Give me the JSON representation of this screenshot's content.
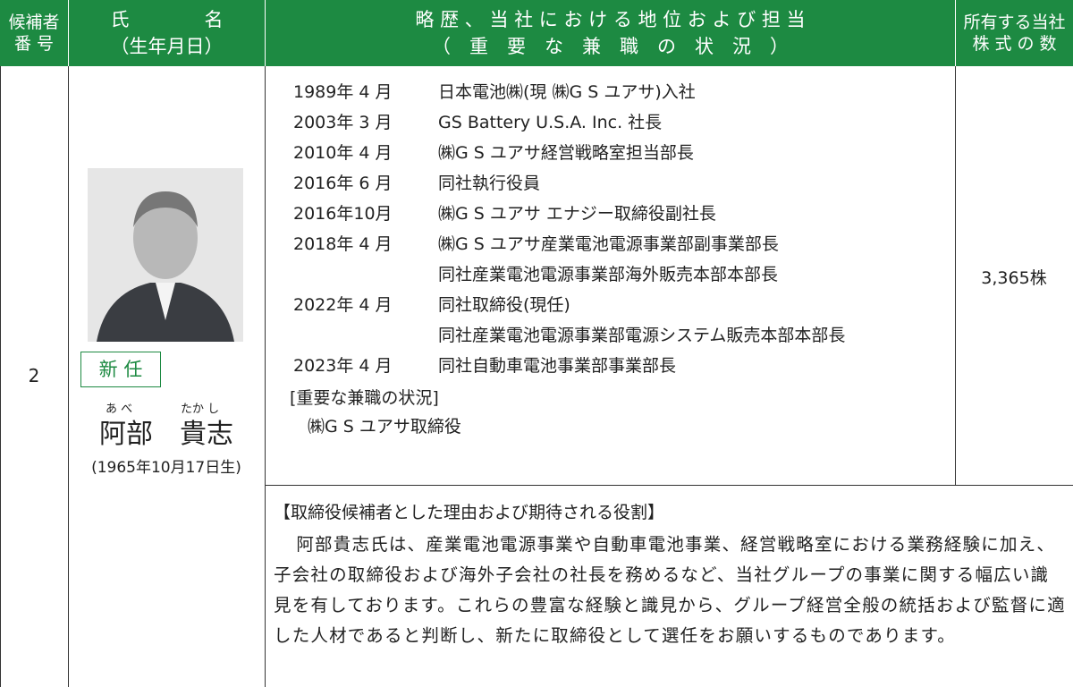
{
  "header": {
    "number": [
      "候補者",
      "番 号"
    ],
    "name": [
      "氏　　　　名",
      "（生年月日）"
    ],
    "career": [
      "略 歴 、 当 社 に お け る 地 位 お よ び 担 当",
      "（　重　要　な　兼　職　の　状　況　）"
    ],
    "shares": [
      "所有する当社",
      "株 式 の 数"
    ]
  },
  "candidate": {
    "number": "2",
    "badge": "新 任",
    "furigana": [
      "あ べ",
      "たか し"
    ],
    "name": "阿部　貴志",
    "birth": "(1965年10月17日生)",
    "shares": "3,365株",
    "career": [
      {
        "date": "1989年 4 月",
        "lines": [
          "日本電池㈱(現 ㈱G S ユアサ)入社"
        ]
      },
      {
        "date": "2003年 3 月",
        "lines": [
          "GS Battery U.S.A. Inc. 社長"
        ]
      },
      {
        "date": "2010年 4 月",
        "lines": [
          "㈱G S ユアサ経営戦略室担当部長"
        ]
      },
      {
        "date": "2016年 6 月",
        "lines": [
          "同社執行役員"
        ]
      },
      {
        "date": "2016年10月",
        "lines": [
          "㈱G S ユアサ エナジー取締役副社長"
        ]
      },
      {
        "date": "2018年 4 月",
        "lines": [
          "㈱G S ユアサ産業電池電源事業部副事業部長",
          "同社産業電池電源事業部海外販売本部本部長"
        ]
      },
      {
        "date": "2022年 4 月",
        "lines": [
          "同社取締役(現任)",
          "同社産業電池電源事業部電源システム販売本部本部長"
        ]
      },
      {
        "date": "2023年 4 月",
        "lines": [
          "同社自動車電池事業部事業部長"
        ]
      }
    ],
    "concurrent_title": "[重要な兼職の状況]",
    "concurrent": "㈱G S ユアサ取締役",
    "reason_title": "【取締役候補者とした理由および期待される役割】",
    "reason": "阿部貴志氏は、産業電池電源事業や自動車電池事業、経営戦略室における業務経験に加え、子会社の取締役および海外子会社の社長を務めるなど、当社グループの事業に関する幅広い識見を有しております。これらの豊富な経験と識見から、グループ経営全般の統括および監督に適した人材であると判断し、新たに取締役として選任をお願いするものであります。"
  }
}
